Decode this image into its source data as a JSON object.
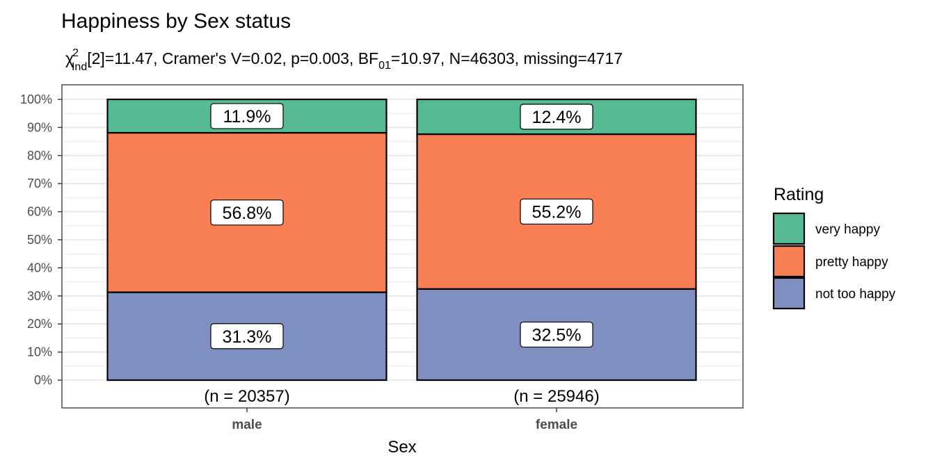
{
  "chart_data": {
    "type": "bar",
    "stacked": true,
    "percent": true,
    "title": "Happiness by Sex status",
    "subtitle": {
      "chi_symbol": "χ",
      "chi_sup": "2",
      "chi_sub": "Ind",
      "part1": "[2]=11.47, Cramer's V=0.02, p=0.003, BF",
      "bf_sub": "01",
      "part2": "=10.97, N=46303, missing=4717"
    },
    "xlabel": "Sex",
    "ylabel": "",
    "categories": [
      "male",
      "female"
    ],
    "counts": [
      "(n = 20357)",
      "(n = 25946)"
    ],
    "series": [
      {
        "name": "not too happy",
        "color": "#7F8FC0",
        "values": [
          31.3,
          32.5
        ],
        "labels": [
          "31.3%",
          "32.5%"
        ]
      },
      {
        "name": "pretty happy",
        "color": "#F77F53",
        "values": [
          56.8,
          55.2
        ],
        "labels": [
          "56.8%",
          "55.2%"
        ]
      },
      {
        "name": "very happy",
        "color": "#56BA93",
        "values": [
          11.9,
          12.4
        ],
        "labels": [
          "11.9%",
          "12.4%"
        ]
      }
    ],
    "ylim": [
      0,
      100
    ],
    "yticks": [
      "0%",
      "10%",
      "20%",
      "30%",
      "40%",
      "50%",
      "60%",
      "70%",
      "80%",
      "90%",
      "100%"
    ],
    "legend": {
      "title": "Rating",
      "position": "right",
      "items": [
        "very happy",
        "pretty happy",
        "not too happy"
      ]
    },
    "grid": true
  }
}
